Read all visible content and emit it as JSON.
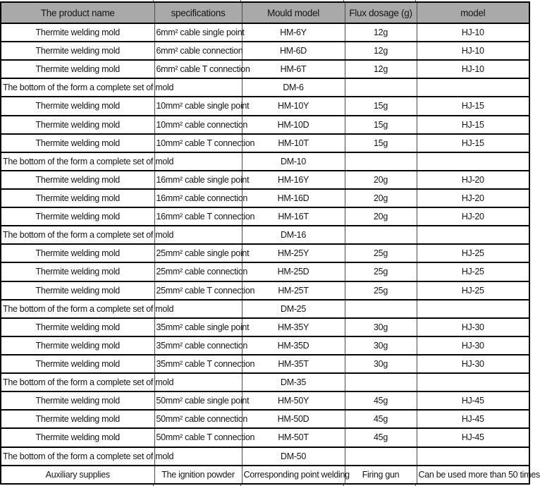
{
  "colors": {
    "header_bg": "#a9a9a9",
    "grid_horizontal": "#000000",
    "grid_vertical": "#4d4d4d",
    "text": "#161616"
  },
  "header": {
    "columns": [
      "The product name",
      "specifications",
      "Mould model",
      "Flux dosage (g)",
      "model"
    ]
  },
  "rows": [
    {
      "variant": "item",
      "cells": [
        "Thermite welding mold",
        "6mm² cable single point",
        "HM-6Y",
        "12g",
        "HJ-10"
      ]
    },
    {
      "variant": "item",
      "cells": [
        "Thermite welding mold",
        "6mm² cable connection",
        "HM-6D",
        "12g",
        "HJ-10"
      ]
    },
    {
      "variant": "item",
      "cells": [
        "Thermite welding mold",
        "6mm² cable T connection",
        "HM-6T",
        "12g",
        "HJ-10"
      ]
    },
    {
      "variant": "group",
      "cells": [
        "The bottom of the form a complete set of mold",
        "",
        "DM-6",
        "",
        ""
      ]
    },
    {
      "variant": "item",
      "cells": [
        "Thermite welding mold",
        "10mm² cable single point",
        "HM-10Y",
        "15g",
        "HJ-15"
      ]
    },
    {
      "variant": "item",
      "cells": [
        "Thermite welding mold",
        "10mm² cable connection",
        "HM-10D",
        "15g",
        "HJ-15"
      ]
    },
    {
      "variant": "item",
      "cells": [
        "Thermite welding mold",
        "10mm² cable T connection",
        "HM-10T",
        "15g",
        "HJ-15"
      ]
    },
    {
      "variant": "group",
      "cells": [
        "The bottom of the form a complete set of mold",
        "",
        "DM-10",
        "",
        ""
      ]
    },
    {
      "variant": "item",
      "cells": [
        "Thermite welding mold",
        "16mm² cable single point",
        "HM-16Y",
        "20g",
        "HJ-20"
      ]
    },
    {
      "variant": "item",
      "cells": [
        "Thermite welding mold",
        "16mm² cable connection",
        "HM-16D",
        "20g",
        "HJ-20"
      ]
    },
    {
      "variant": "item",
      "cells": [
        "Thermite welding mold",
        "16mm² cable T connection",
        "HM-16T",
        "20g",
        "HJ-20"
      ]
    },
    {
      "variant": "group",
      "cells": [
        "The bottom of the form a complete set of mold",
        "",
        "DM-16",
        "",
        ""
      ]
    },
    {
      "variant": "item",
      "cells": [
        "Thermite welding mold",
        "25mm² cable single point",
        "HM-25Y",
        "25g",
        "HJ-25"
      ]
    },
    {
      "variant": "item",
      "cells": [
        "Thermite welding mold",
        "25mm² cable connection",
        "HM-25D",
        "25g",
        "HJ-25"
      ]
    },
    {
      "variant": "item",
      "cells": [
        "Thermite welding mold",
        "25mm² cable T connection",
        "HM-25T",
        "25g",
        "HJ-25"
      ]
    },
    {
      "variant": "group",
      "cells": [
        "The bottom of the form a complete set of mold",
        "",
        "DM-25",
        "",
        ""
      ]
    },
    {
      "variant": "item",
      "cells": [
        "Thermite welding mold",
        "35mm² cable single point",
        "HM-35Y",
        "30g",
        "HJ-30"
      ]
    },
    {
      "variant": "item",
      "cells": [
        "Thermite welding mold",
        "35mm² cable connection",
        "HM-35D",
        "30g",
        "HJ-30"
      ]
    },
    {
      "variant": "item",
      "cells": [
        "Thermite welding mold",
        "35mm² cable T connection",
        "HM-35T",
        "30g",
        "HJ-30"
      ]
    },
    {
      "variant": "group",
      "cells": [
        "The bottom of the form a complete set of mold",
        "",
        "DM-35",
        "",
        ""
      ]
    },
    {
      "variant": "item",
      "cells": [
        "Thermite welding mold",
        "50mm² cable single point",
        "HM-50Y",
        "45g",
        "HJ-45"
      ]
    },
    {
      "variant": "item",
      "cells": [
        "Thermite welding mold",
        "50mm² cable connection",
        "HM-50D",
        "45g",
        "HJ-45"
      ]
    },
    {
      "variant": "item",
      "cells": [
        "Thermite welding mold",
        "50mm² cable T connection",
        "HM-50T",
        "45g",
        "HJ-45"
      ]
    },
    {
      "variant": "group",
      "cells": [
        "The bottom of the form a complete set of mold",
        "",
        "DM-50",
        "",
        ""
      ]
    },
    {
      "variant": "item",
      "cells": [
        "Auxiliary supplies",
        "The ignition powder",
        "Corresponding point welding",
        "Firing gun",
        "Can be used more than 50 times"
      ]
    }
  ]
}
